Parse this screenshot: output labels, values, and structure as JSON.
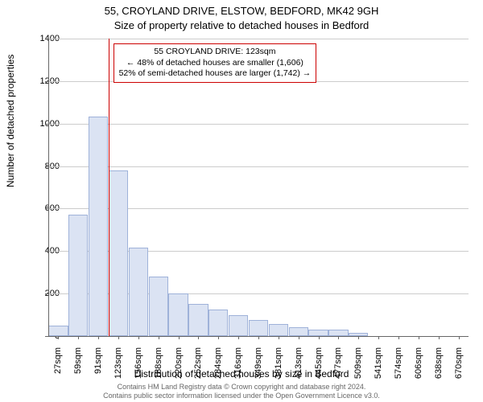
{
  "title_line1": "55, CROYLAND DRIVE, ELSTOW, BEDFORD, MK42 9GH",
  "title_line2": "Size of property relative to detached houses in Bedford",
  "y_axis_label": "Number of detached properties",
  "x_axis_label": "Distribution of detached houses by size in Bedford",
  "footer_line1": "Contains HM Land Registry data © Crown copyright and database right 2024.",
  "footer_line2": "Contains public sector information licensed under the Open Government Licence v3.0.",
  "chart": {
    "type": "histogram",
    "background_color": "#ffffff",
    "plot_border_color": "#666666",
    "grid_color": "#cccccc",
    "bar_fill": "#dbe3f3",
    "bar_border": "#9fb2d9",
    "marker_color": "#cc0000",
    "annotation_border": "#cc0000",
    "text_color": "#000000",
    "title_fontsize": 13,
    "axis_label_fontsize": 12,
    "tick_fontsize": 11,
    "annotation_fontsize": 10.5,
    "footer_fontsize": 9,
    "footer_color": "#666666",
    "ylim": [
      0,
      1400
    ],
    "ytick_step": 200,
    "yticks": [
      0,
      200,
      400,
      600,
      800,
      1000,
      1200,
      1400
    ],
    "x_categories": [
      "27sqm",
      "59sqm",
      "91sqm",
      "123sqm",
      "156sqm",
      "188sqm",
      "220sqm",
      "252sqm",
      "284sqm",
      "316sqm",
      "349sqm",
      "381sqm",
      "413sqm",
      "445sqm",
      "477sqm",
      "509sqm",
      "541sqm",
      "574sqm",
      "606sqm",
      "638sqm",
      "670sqm"
    ],
    "values": [
      48,
      570,
      1032,
      780,
      415,
      280,
      200,
      150,
      125,
      100,
      75,
      55,
      40,
      30,
      30,
      15,
      0,
      0,
      0,
      0,
      0
    ],
    "bar_width_ratio": 0.98,
    "marker_category_index": 3,
    "annotation": {
      "line1": "55 CROYLAND DRIVE: 123sqm",
      "line2": "← 48% of detached houses are smaller (1,606)",
      "line3": "52% of semi-detached houses are larger (1,742) →"
    }
  }
}
